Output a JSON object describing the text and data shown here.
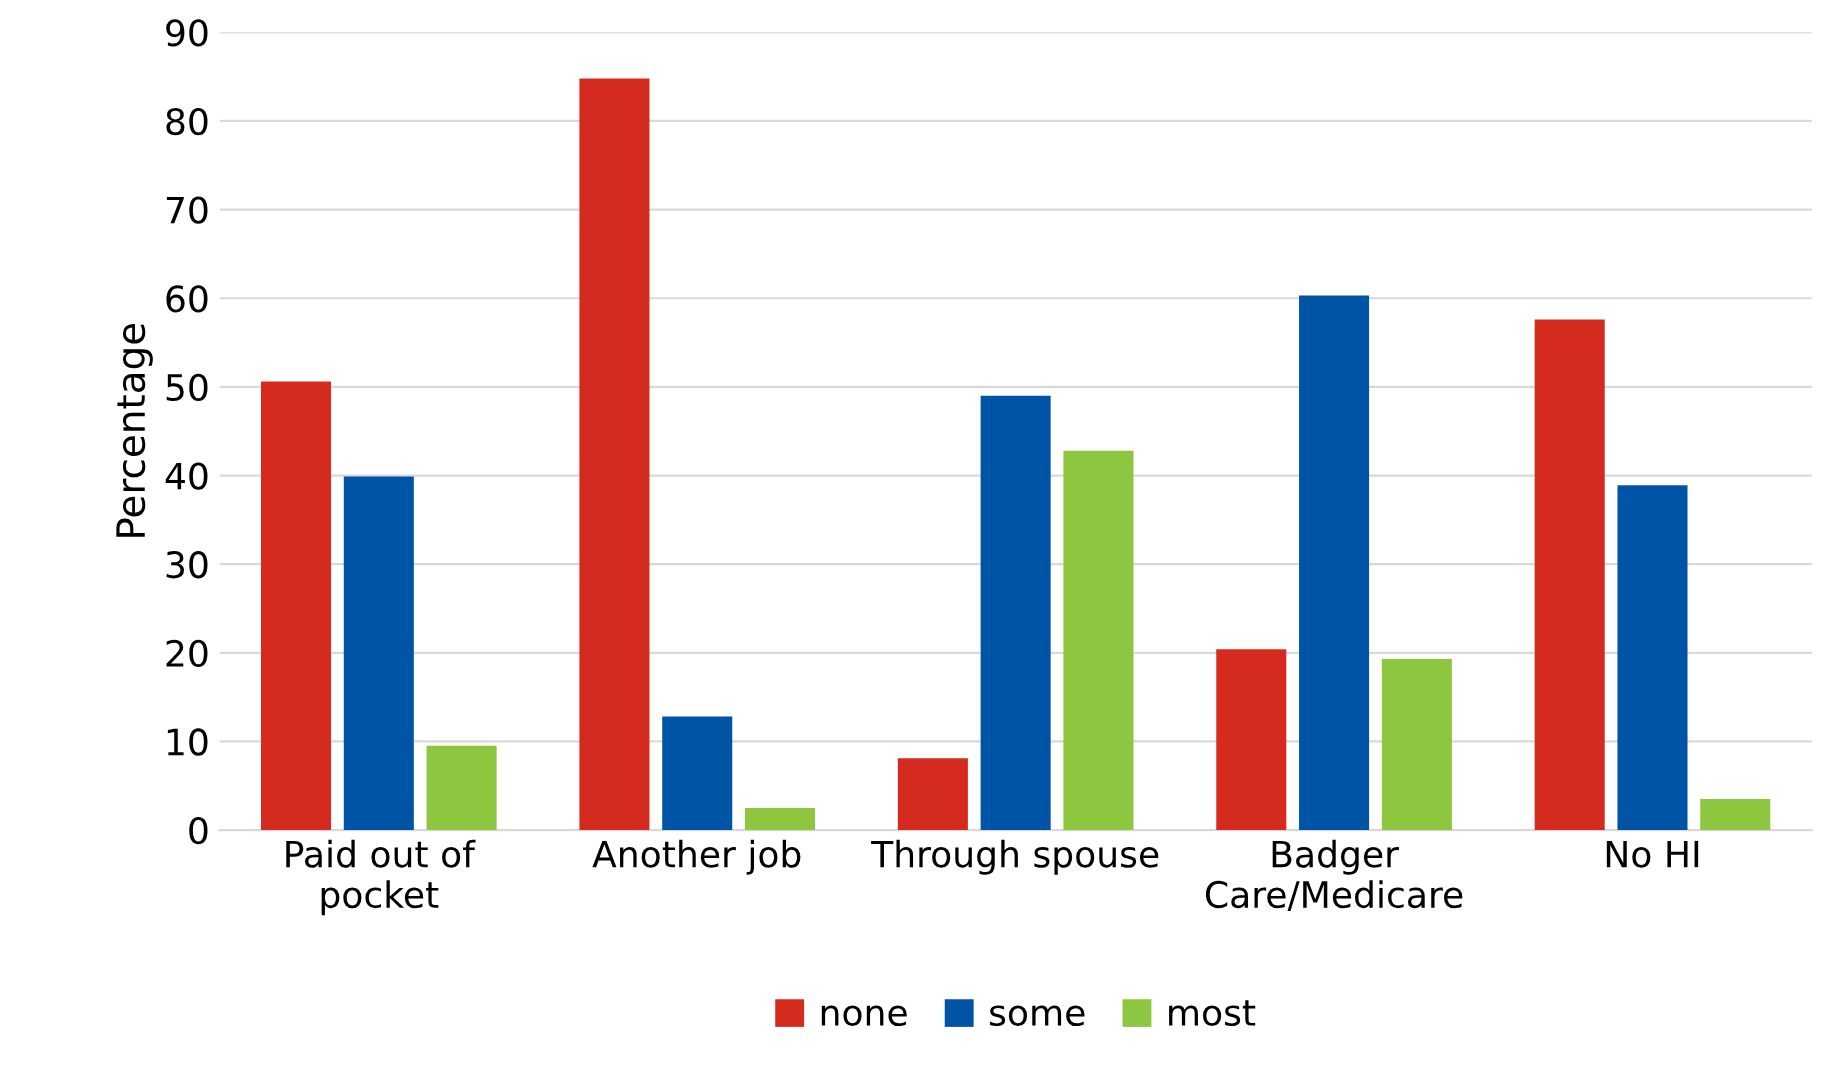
{
  "chart_data": {
    "type": "bar",
    "ylabel": "Percentage",
    "categories": [
      "Paid out of\npocket",
      "Another job",
      "Through spouse",
      "Badger\nCare/Medicare",
      "No HI"
    ],
    "series": [
      {
        "name": "none",
        "color": "#d52b1e",
        "values": [
          50.6,
          84.8,
          8.1,
          20.4,
          57.6
        ]
      },
      {
        "name": "some",
        "color": "#0054a6",
        "values": [
          39.9,
          12.8,
          49.0,
          60.3,
          38.9
        ]
      },
      {
        "name": "most",
        "color": "#8dc63f",
        "values": [
          9.5,
          2.5,
          42.8,
          19.3,
          3.5
        ]
      }
    ],
    "ylim": [
      0,
      90
    ],
    "yticks": [
      0,
      10,
      20,
      30,
      40,
      50,
      60,
      70,
      80,
      90
    ],
    "grid": "y",
    "legend": "bottom"
  }
}
